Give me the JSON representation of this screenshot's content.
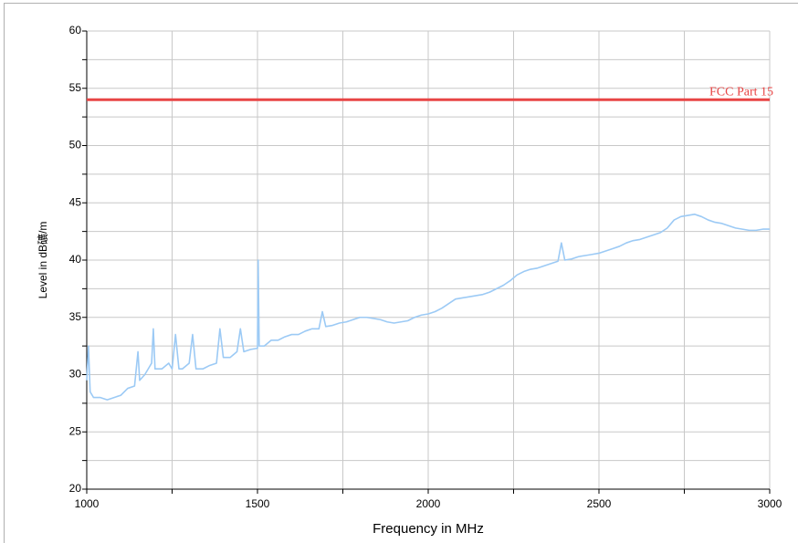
{
  "chart_data": {
    "type": "line",
    "xlabel": "Frequency in MHz",
    "ylabel": "Level in dB礦/m",
    "xlim": [
      1000,
      3000
    ],
    "ylim": [
      20,
      60
    ],
    "xticks": [
      1000,
      1500,
      2000,
      2500,
      3000
    ],
    "x_minor_ticks": [
      1250,
      1750,
      2250,
      2750
    ],
    "yticks": [
      20,
      25,
      30,
      35,
      40,
      45,
      50,
      55,
      60
    ],
    "y_minor_ticks": [
      22.5,
      27.5,
      32.5,
      37.5,
      42.5,
      47.5,
      52.5,
      57.5
    ],
    "grid": true,
    "limit_lines": [
      {
        "name": "FCC Part 15",
        "color": "#e84545",
        "x": [
          1000,
          3000
        ],
        "values": [
          54,
          54
        ]
      }
    ],
    "series": [
      {
        "color": "#9ccaf5",
        "x": [
          1000,
          1005,
          1010,
          1020,
          1040,
          1060,
          1080,
          1100,
          1120,
          1140,
          1150,
          1155,
          1170,
          1180,
          1190,
          1195,
          1200,
          1220,
          1240,
          1250,
          1260,
          1270,
          1280,
          1300,
          1310,
          1320,
          1340,
          1360,
          1380,
          1390,
          1400,
          1420,
          1440,
          1450,
          1460,
          1480,
          1500,
          1502,
          1505,
          1520,
          1540,
          1560,
          1580,
          1600,
          1620,
          1640,
          1660,
          1680,
          1690,
          1700,
          1720,
          1740,
          1760,
          1780,
          1800,
          1820,
          1840,
          1860,
          1880,
          1900,
          1920,
          1940,
          1960,
          1980,
          2000,
          2020,
          2040,
          2060,
          2080,
          2100,
          2120,
          2140,
          2160,
          2180,
          2200,
          2220,
          2240,
          2260,
          2280,
          2300,
          2320,
          2340,
          2360,
          2380,
          2390,
          2400,
          2420,
          2440,
          2460,
          2480,
          2500,
          2520,
          2540,
          2560,
          2580,
          2600,
          2620,
          2640,
          2660,
          2680,
          2700,
          2720,
          2740,
          2760,
          2780,
          2800,
          2820,
          2840,
          2860,
          2880,
          2900,
          2920,
          2940,
          2960,
          2980,
          3000
        ],
        "values": [
          29.5,
          32.5,
          28.5,
          28,
          28,
          27.8,
          28,
          28.2,
          28.8,
          29,
          32,
          29.5,
          30,
          30.5,
          31,
          34,
          30.5,
          30.5,
          31,
          30.5,
          33.5,
          30.5,
          30.5,
          31,
          33.5,
          30.5,
          30.5,
          30.8,
          31,
          34,
          31.5,
          31.5,
          32,
          34,
          32,
          32.2,
          32.3,
          40,
          32.5,
          32.5,
          33,
          33,
          33.3,
          33.5,
          33.5,
          33.8,
          34,
          34,
          35.5,
          34.2,
          34.3,
          34.5,
          34.6,
          34.8,
          35,
          35,
          34.9,
          34.8,
          34.6,
          34.5,
          34.6,
          34.7,
          35,
          35.2,
          35.3,
          35.5,
          35.8,
          36.2,
          36.6,
          36.7,
          36.8,
          36.9,
          37,
          37.2,
          37.5,
          37.8,
          38.2,
          38.7,
          39,
          39.2,
          39.3,
          39.5,
          39.7,
          39.9,
          41.5,
          40,
          40.1,
          40.3,
          40.4,
          40.5,
          40.6,
          40.8,
          41,
          41.2,
          41.5,
          41.7,
          41.8,
          42,
          42.2,
          42.4,
          42.8,
          43.5,
          43.8,
          43.9,
          44,
          43.8,
          43.5,
          43.3,
          43.2,
          43,
          42.8,
          42.7,
          42.6,
          42.6,
          42.7,
          42.7
        ]
      }
    ]
  }
}
